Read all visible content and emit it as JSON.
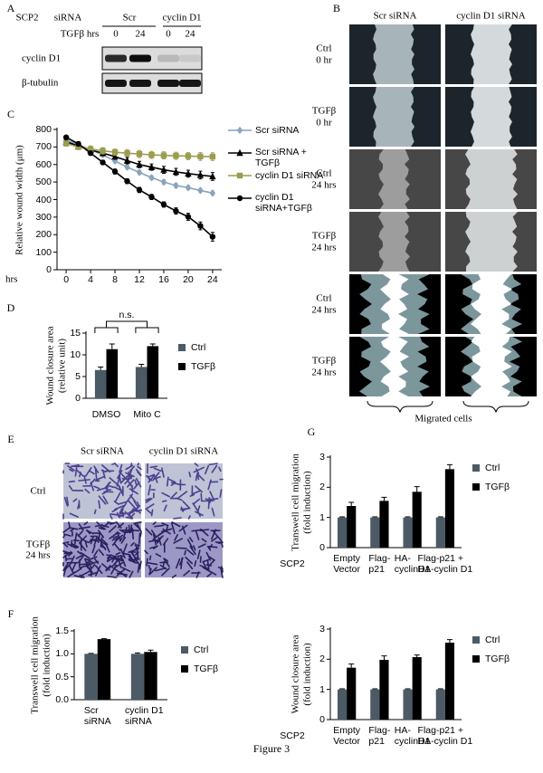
{
  "blot": {
    "label": "A",
    "cell_line": "SCP2",
    "sirna_label": "siRNA",
    "groups": [
      "Scr",
      "cyclin D1"
    ],
    "treatment_label": "TGFβ hrs",
    "lanes": [
      "0",
      "24",
      "0",
      "24"
    ],
    "rows": [
      "cyclin D1",
      "β-tubulin"
    ]
  },
  "wound_images": {
    "label": "B",
    "columns": [
      "Scr siRNA",
      "cyclin D1 siRNA"
    ],
    "rows": [
      "Ctrl\n0 hr",
      "TGFβ\n0 hr",
      "Ctrl\n24 hrs",
      "TGFβ\n24 hrs",
      "Ctrl\n24 hrs",
      "TGFβ\n24 hrs"
    ],
    "annotation": "Migrated cells"
  },
  "transwell_images": {
    "label": "E",
    "columns": [
      "Scr siRNA",
      "cyclin D1 siRNA"
    ],
    "rows": [
      "Ctrl",
      "TGFβ\n24 hrs"
    ]
  },
  "caption": "Figure 3",
  "chart_data": [
    {
      "type": "line",
      "label": "C",
      "ylabel": "Relative wound width (μm)",
      "xlabel": "hrs",
      "x": [
        0,
        2,
        4,
        6,
        8,
        10,
        12,
        14,
        16,
        18,
        20,
        22,
        24
      ],
      "xlim": [
        -1.5,
        25.5
      ],
      "xticks": [
        0,
        4,
        8,
        12,
        16,
        20,
        24
      ],
      "ylim": [
        0,
        800
      ],
      "yticks": [
        0,
        100,
        200,
        300,
        400,
        500,
        600,
        700,
        800
      ],
      "series": [
        {
          "name": "Scr siRNA",
          "color": "#8aa4be",
          "marker": "diamond",
          "values": [
            740,
            712,
            685,
            655,
            620,
            585,
            555,
            525,
            500,
            480,
            468,
            452,
            437
          ],
          "errors": [
            10,
            10,
            10,
            10,
            10,
            12,
            12,
            12,
            12,
            12,
            12,
            12,
            12
          ]
        },
        {
          "name": "Scr siRNA + TGFβ",
          "color": "#000000",
          "marker": "triangle",
          "values": [
            730,
            705,
            682,
            665,
            645,
            622,
            600,
            585,
            570,
            558,
            548,
            540,
            532
          ],
          "errors": [
            12,
            12,
            15,
            15,
            15,
            18,
            18,
            18,
            20,
            20,
            20,
            22,
            22
          ]
        },
        {
          "name": "cyclin D1 siRNA",
          "color": "#9c9c4e",
          "marker": "square",
          "values": [
            720,
            700,
            688,
            678,
            670,
            665,
            660,
            655,
            652,
            650,
            648,
            646,
            645
          ],
          "errors": [
            15,
            15,
            18,
            18,
            18,
            20,
            20,
            20,
            20,
            20,
            20,
            22,
            22
          ]
        },
        {
          "name": "cyclin D1 siRNA+TGFβ",
          "color": "#000000",
          "marker": "circle",
          "values": [
            755,
            718,
            665,
            612,
            560,
            505,
            455,
            415,
            372,
            335,
            302,
            250,
            188
          ],
          "errors": [
            10,
            12,
            12,
            12,
            14,
            14,
            15,
            15,
            15,
            18,
            20,
            22,
            25
          ]
        }
      ]
    },
    {
      "type": "bar",
      "label": "D",
      "ylabel": "Wound closure area\n(relative unit)",
      "annotation": "n.s.",
      "categories": [
        "DMSO",
        "Mito C"
      ],
      "ylim": [
        0,
        15
      ],
      "yticks": [
        0,
        5,
        10,
        15
      ],
      "series": [
        {
          "name": "Ctrl",
          "color": "#4c5a66",
          "values": [
            6.5,
            7.2
          ],
          "errors": [
            0.7,
            0.6
          ]
        },
        {
          "name": "TGFβ",
          "color": "#000000",
          "values": [
            11.3,
            12.0
          ],
          "errors": [
            1.2,
            0.5
          ]
        }
      ]
    },
    {
      "type": "bar",
      "label": "G",
      "ylabel": "Transwell cell migration\n(fold induction)",
      "category_axis_label": "SCP2",
      "categories": [
        "Empty\nVector",
        "Flag-\np21",
        "HA-\ncyclinD1",
        "Flag-p21 +\nHA-cyclin D1"
      ],
      "ylim": [
        0,
        3
      ],
      "yticks": [
        0,
        1,
        2,
        3
      ],
      "series": [
        {
          "name": "Ctrl",
          "color": "#4c5a66",
          "values": [
            1,
            1,
            1,
            1
          ],
          "errors": [
            0.02,
            0.02,
            0.02,
            0.02
          ]
        },
        {
          "name": "TGFβ",
          "color": "#000000",
          "values": [
            1.38,
            1.55,
            1.85,
            2.6
          ],
          "errors": [
            0.12,
            0.12,
            0.17,
            0.15
          ]
        }
      ]
    },
    {
      "type": "bar",
      "label": "F",
      "ylabel": "Transwell cell migration\n(fold induction)",
      "categories": [
        "Scr\nsiRNA",
        "cyclin D1\nsiRNA"
      ],
      "ylim": [
        0,
        1.5
      ],
      "yticks": [
        {
          "value": 0,
          "label": "0.0"
        },
        {
          "value": 0.5,
          "label": "0.5"
        },
        {
          "value": 1,
          "label": "1.0"
        },
        {
          "value": 1.5,
          "label": "1.5"
        }
      ],
      "series": [
        {
          "name": "Ctrl",
          "color": "#4c5a66",
          "values": [
            1,
            1
          ],
          "errors": [
            0.01,
            0.02
          ]
        },
        {
          "name": "TGFβ",
          "color": "#000000",
          "values": [
            1.32,
            1.04
          ],
          "errors": [
            0.01,
            0.04
          ]
        }
      ]
    },
    {
      "type": "bar",
      "ylabel": "Wound closure area\n(fold induction)",
      "category_axis_label": "SCP2",
      "categories": [
        "Empty\nVector",
        "Flag-\np21",
        "HA-\ncyclinD1",
        "Flag-p21 +\nHA-cyclin D1"
      ],
      "ylim": [
        0,
        3
      ],
      "yticks": [
        0,
        1,
        2,
        3
      ],
      "series": [
        {
          "name": "Ctrl",
          "color": "#4c5a66",
          "values": [
            1,
            1,
            1,
            1
          ],
          "errors": [
            0.02,
            0.02,
            0.02,
            0.02
          ]
        },
        {
          "name": "TGFβ",
          "color": "#000000",
          "values": [
            1.72,
            1.98,
            2.07,
            2.55
          ],
          "errors": [
            0.12,
            0.13,
            0.07,
            0.1
          ]
        }
      ]
    }
  ]
}
